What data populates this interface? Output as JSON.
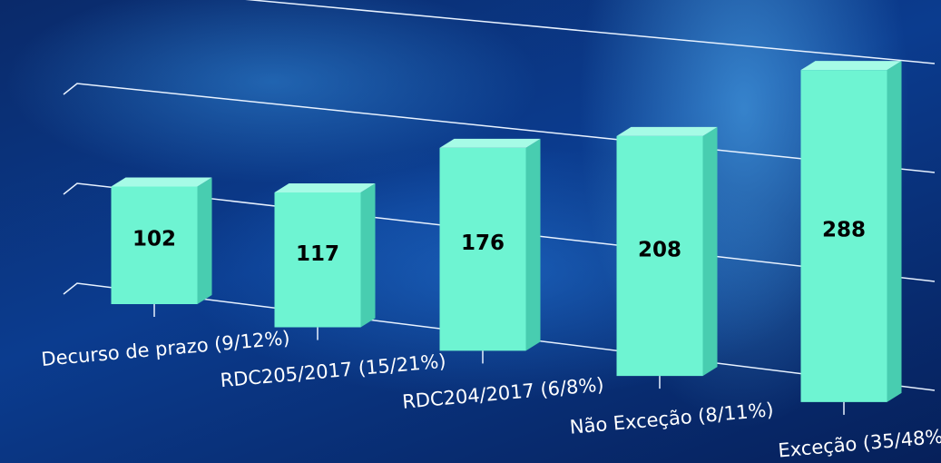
{
  "chart_data": {
    "type": "bar3d",
    "categories": [
      "Decurso de prazo (9/12%)",
      "RDC205/2017 (15/21%)",
      "RDC204/2017 (6/8%)",
      "Não Exceção (8/11%)",
      "Exceção (35/48%)"
    ],
    "values": [
      102,
      117,
      176,
      208,
      288
    ],
    "color": "#6ef4d2",
    "ylim": [
      0,
      300
    ],
    "yticks": [
      0,
      100,
      200,
      300
    ],
    "grid": true
  }
}
